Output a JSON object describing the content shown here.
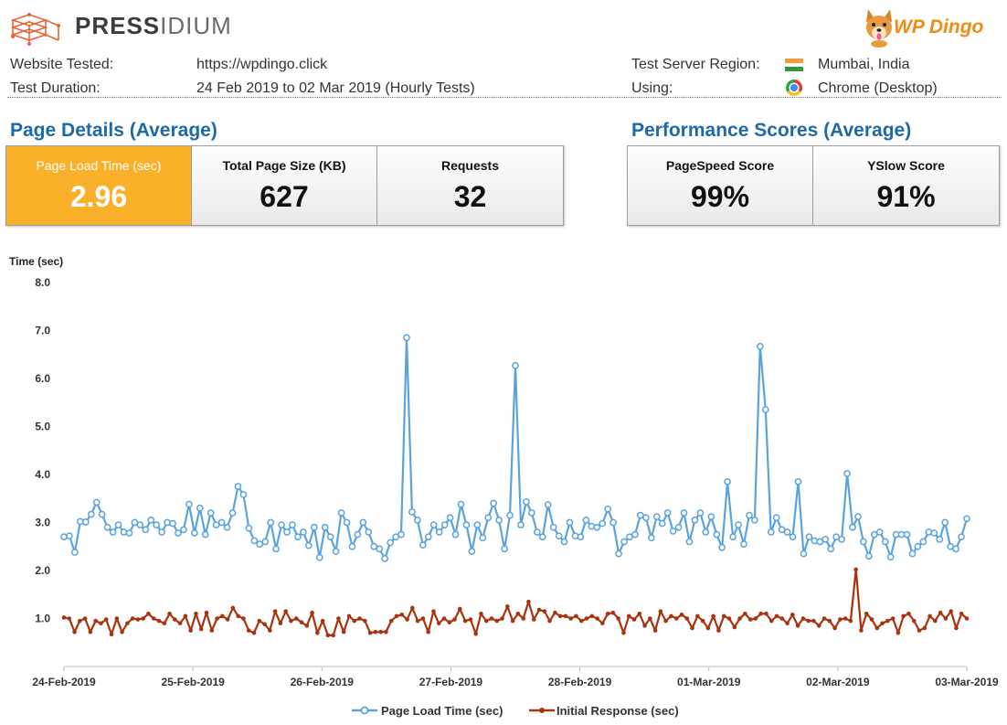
{
  "header": {
    "brand_bold": "PRESS",
    "brand_light": "IDIUM",
    "partner_logo": "WP Dingo",
    "partner_logo_icon": "dog-icon"
  },
  "test_info": {
    "website_label": "Website Tested:",
    "website_value": "https://wpdingo.click",
    "duration_label": "Test Duration:",
    "duration_value": "24 Feb 2019 to 02 Mar 2019 (Hourly Tests)",
    "region_label": "Test Server Region:",
    "region_value": "Mumbai, India",
    "region_icon": "india-flag-icon",
    "using_label": "Using:",
    "using_value": "Chrome (Desktop)",
    "using_icon": "chrome-icon"
  },
  "page_details": {
    "title": "Page Details (Average)",
    "kpis": [
      {
        "label": "Page Load Time (sec)",
        "value": "2.96"
      },
      {
        "label": "Total Page Size (KB)",
        "value": "627"
      },
      {
        "label": "Requests",
        "value": "32"
      }
    ]
  },
  "performance_scores": {
    "title": "Performance Scores (Average)",
    "kpis": [
      {
        "label": "PageSpeed Score",
        "value": "99%"
      },
      {
        "label": "YSlow Score",
        "value": "91%"
      }
    ]
  },
  "colors": {
    "accent": "#fbb02a",
    "section_title": "#1e6aa8",
    "series_load": "#5ba3dc",
    "series_response": "#a8330f"
  },
  "chart_data": {
    "type": "line",
    "title": "",
    "ylabel": "Time (sec)",
    "xlabel": "",
    "ylim": [
      0,
      8
    ],
    "y_ticks": [
      "8.0",
      "7.0",
      "6.0",
      "5.0",
      "4.0",
      "3.0",
      "2.0",
      "1.0"
    ],
    "x_labels": [
      "24-Feb-2019",
      "25-Feb-2019",
      "26-Feb-2019",
      "27-Feb-2019",
      "28-Feb-2019",
      "01-Mar-2019",
      "02-Mar-2019",
      "03-Mar-2019"
    ],
    "grid": false,
    "legend_position": "bottom",
    "series": [
      {
        "name": "Page Load Time (sec)",
        "values": [
          2.7,
          2.72,
          2.38,
          3.02,
          3.01,
          3.17,
          3.42,
          3.17,
          2.9,
          2.8,
          2.95,
          2.8,
          2.78,
          3.0,
          2.95,
          2.85,
          3.05,
          2.95,
          2.8,
          3.0,
          2.98,
          2.78,
          2.85,
          3.38,
          2.78,
          3.3,
          2.75,
          3.2,
          2.95,
          3.0,
          2.9,
          3.2,
          3.75,
          3.58,
          2.88,
          2.62,
          2.55,
          2.6,
          3.0,
          2.45,
          2.95,
          2.8,
          2.95,
          2.7,
          2.8,
          2.52,
          2.9,
          2.27,
          2.9,
          2.7,
          2.4,
          3.2,
          3.0,
          2.5,
          2.75,
          3.0,
          2.8,
          2.5,
          2.45,
          2.25,
          2.58,
          2.7,
          2.75,
          6.85,
          3.22,
          3.05,
          2.53,
          2.7,
          2.95,
          2.8,
          2.95,
          3.1,
          2.75,
          3.38,
          2.95,
          2.4,
          2.95,
          2.68,
          3.1,
          3.4,
          3.05,
          2.45,
          3.15,
          6.27,
          2.95,
          3.43,
          3.2,
          2.8,
          2.7,
          3.37,
          2.9,
          2.72,
          2.6,
          3.0,
          2.72,
          2.7,
          3.05,
          2.92,
          2.9,
          2.98,
          3.28,
          3.0,
          2.35,
          2.6,
          2.7,
          2.75,
          3.15,
          3.1,
          2.68,
          3.12,
          2.98,
          3.2,
          2.82,
          2.9,
          3.2,
          2.6,
          3.05,
          3.2,
          2.8,
          3.12,
          2.75,
          2.48,
          3.85,
          2.7,
          2.95,
          2.55,
          3.15,
          3.05,
          6.67,
          5.35,
          2.8,
          3.1,
          2.85,
          2.8,
          2.7,
          3.85,
          2.35,
          2.7,
          2.62,
          2.6,
          2.65,
          2.45,
          2.7,
          2.65,
          4.02,
          2.9,
          3.12,
          2.6,
          2.3,
          2.75,
          2.8,
          2.6,
          2.28,
          2.75,
          2.75,
          2.75,
          2.35,
          2.5,
          2.6,
          2.8,
          2.78,
          2.65,
          3.0,
          2.5,
          2.45,
          2.7,
          3.08
        ]
      },
      {
        "name": "Initial Response (sec)",
        "values": [
          1.02,
          1.0,
          0.72,
          0.95,
          1.0,
          0.72,
          0.95,
          0.9,
          0.98,
          0.67,
          1.0,
          0.72,
          0.9,
          1.0,
          0.98,
          1.0,
          1.1,
          1.0,
          0.95,
          0.9,
          1.1,
          0.98,
          0.9,
          1.05,
          0.75,
          1.1,
          0.78,
          1.12,
          0.75,
          1.0,
          1.05,
          0.98,
          1.22,
          1.05,
          1.0,
          0.75,
          0.7,
          0.95,
          0.88,
          0.75,
          1.15,
          0.9,
          1.15,
          0.95,
          1.0,
          0.92,
          0.85,
          1.12,
          0.7,
          0.95,
          0.65,
          0.65,
          1.0,
          0.72,
          1.05,
          0.95,
          1.0,
          0.95,
          0.7,
          0.72,
          0.72,
          0.72,
          0.95,
          1.05,
          1.08,
          0.98,
          1.22,
          0.95,
          1.0,
          0.72,
          1.15,
          0.9,
          1.0,
          0.92,
          0.98,
          1.2,
          0.95,
          0.98,
          0.68,
          1.1,
          0.95,
          1.0,
          0.95,
          1.0,
          1.25,
          0.95,
          1.1,
          1.0,
          1.35,
          0.98,
          1.18,
          1.15,
          0.95,
          1.12,
          1.05,
          1.05,
          1.0,
          1.05,
          0.95,
          1.0,
          1.05,
          1.0,
          0.9,
          1.1,
          1.12,
          1.0,
          0.7,
          1.05,
          0.98,
          1.1,
          0.85,
          1.0,
          0.75,
          1.15,
          0.95,
          1.05,
          1.0,
          1.08,
          1.0,
          0.8,
          1.05,
          0.95,
          0.8,
          1.05,
          0.75,
          1.05,
          1.0,
          0.82,
          1.0,
          1.1,
          0.98,
          1.0,
          1.1,
          1.1,
          0.95,
          1.05,
          1.0,
          0.9,
          1.08,
          0.85,
          1.0,
          0.95,
          0.95,
          0.85,
          1.0,
          0.95,
          0.8,
          0.98,
          1.0,
          0.95,
          2.02,
          0.75,
          1.1,
          0.98,
          0.8,
          0.9,
          0.95,
          1.0,
          0.7,
          1.05,
          1.1,
          0.95,
          0.75,
          0.8,
          1.05,
          0.95,
          1.12,
          1.0,
          1.15,
          0.8,
          1.1,
          1.0
        ]
      }
    ]
  }
}
